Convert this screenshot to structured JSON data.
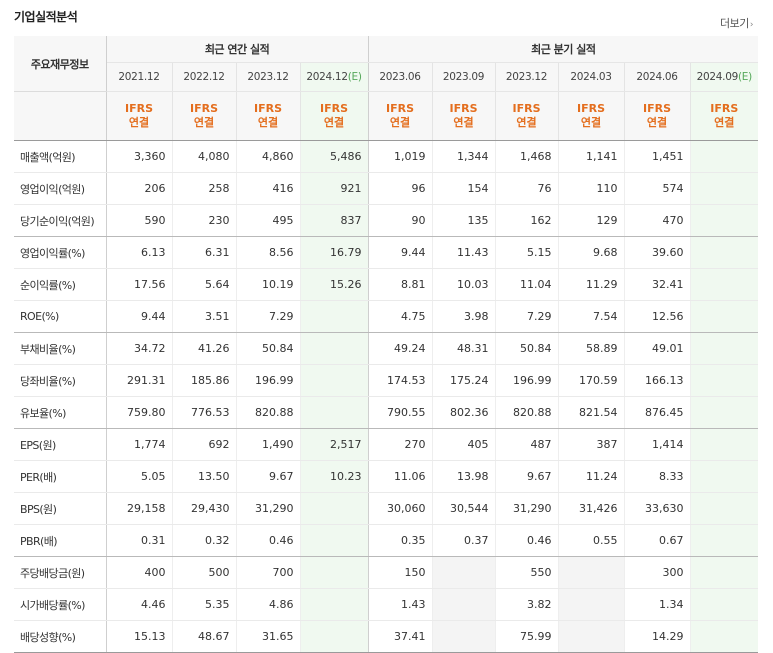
{
  "section": {
    "title": "기업실적분석",
    "more_label": "더보기",
    "more_arrow": "›"
  },
  "table": {
    "corner_label": "주요재무정보",
    "annual_header": "최근 연간 실적",
    "quarter_header": "최근 분기 실적",
    "annual_periods": [
      {
        "label": "2021.12",
        "est": ""
      },
      {
        "label": "2022.12",
        "est": ""
      },
      {
        "label": "2023.12",
        "est": ""
      },
      {
        "label": "2024.12",
        "est": "(E)"
      }
    ],
    "quarter_periods": [
      {
        "label": "2023.06",
        "est": ""
      },
      {
        "label": "2023.09",
        "est": ""
      },
      {
        "label": "2023.12",
        "est": ""
      },
      {
        "label": "2024.03",
        "est": ""
      },
      {
        "label": "2024.06",
        "est": ""
      },
      {
        "label": "2024.09",
        "est": "(E)"
      }
    ],
    "ifrs_line1": "IFRS",
    "ifrs_line2": "연결",
    "rows": [
      {
        "label": "매출액(억원)",
        "values": [
          "3,360",
          "4,080",
          "4,860",
          "5,486",
          "1,019",
          "1,344",
          "1,468",
          "1,141",
          "1,451",
          ""
        ]
      },
      {
        "label": "영업이익(억원)",
        "values": [
          "206",
          "258",
          "416",
          "921",
          "96",
          "154",
          "76",
          "110",
          "574",
          ""
        ]
      },
      {
        "label": "당기순이익(억원)",
        "values": [
          "590",
          "230",
          "495",
          "837",
          "90",
          "135",
          "162",
          "129",
          "470",
          ""
        ]
      },
      {
        "label": "영업이익률(%)",
        "values": [
          "6.13",
          "6.31",
          "8.56",
          "16.79",
          "9.44",
          "11.43",
          "5.15",
          "9.68",
          "39.60",
          ""
        ]
      },
      {
        "label": "순이익률(%)",
        "values": [
          "17.56",
          "5.64",
          "10.19",
          "15.26",
          "8.81",
          "10.03",
          "11.04",
          "11.29",
          "32.41",
          ""
        ]
      },
      {
        "label": "ROE(%)",
        "values": [
          "9.44",
          "3.51",
          "7.29",
          "",
          "4.75",
          "3.98",
          "7.29",
          "7.54",
          "12.56",
          ""
        ]
      },
      {
        "label": "부채비율(%)",
        "values": [
          "34.72",
          "41.26",
          "50.84",
          "",
          "49.24",
          "48.31",
          "50.84",
          "58.89",
          "49.01",
          ""
        ]
      },
      {
        "label": "당좌비율(%)",
        "values": [
          "291.31",
          "185.86",
          "196.99",
          "",
          "174.53",
          "175.24",
          "196.99",
          "170.59",
          "166.13",
          ""
        ]
      },
      {
        "label": "유보율(%)",
        "values": [
          "759.80",
          "776.53",
          "820.88",
          "",
          "790.55",
          "802.36",
          "820.88",
          "821.54",
          "876.45",
          ""
        ]
      },
      {
        "label": "EPS(원)",
        "values": [
          "1,774",
          "692",
          "1,490",
          "2,517",
          "270",
          "405",
          "487",
          "387",
          "1,414",
          ""
        ]
      },
      {
        "label": "PER(배)",
        "values": [
          "5.05",
          "13.50",
          "9.67",
          "10.23",
          "11.06",
          "13.98",
          "9.67",
          "11.24",
          "8.33",
          ""
        ]
      },
      {
        "label": "BPS(원)",
        "values": [
          "29,158",
          "29,430",
          "31,290",
          "",
          "30,060",
          "30,544",
          "31,290",
          "31,426",
          "33,630",
          ""
        ]
      },
      {
        "label": "PBR(배)",
        "values": [
          "0.31",
          "0.32",
          "0.46",
          "",
          "0.35",
          "0.37",
          "0.46",
          "0.55",
          "0.67",
          ""
        ]
      },
      {
        "label": "주당배당금(원)",
        "values": [
          "400",
          "500",
          "700",
          "",
          "150",
          "",
          "550",
          "",
          "300",
          ""
        ]
      },
      {
        "label": "시가배당률(%)",
        "values": [
          "4.46",
          "5.35",
          "4.86",
          "",
          "1.43",
          "",
          "3.82",
          "",
          "1.34",
          ""
        ]
      },
      {
        "label": "배당성향(%)",
        "values": [
          "15.13",
          "48.67",
          "31.65",
          "",
          "37.41",
          "",
          "75.99",
          "",
          "14.29",
          ""
        ]
      }
    ]
  },
  "colors": {
    "ifrs": "#e46e1e",
    "estimate_bg": "#f0f9f0",
    "estimate_mark": "#55a85a",
    "blank_cell": "#f4f4f4",
    "header_bg": "#f7f7f7"
  }
}
